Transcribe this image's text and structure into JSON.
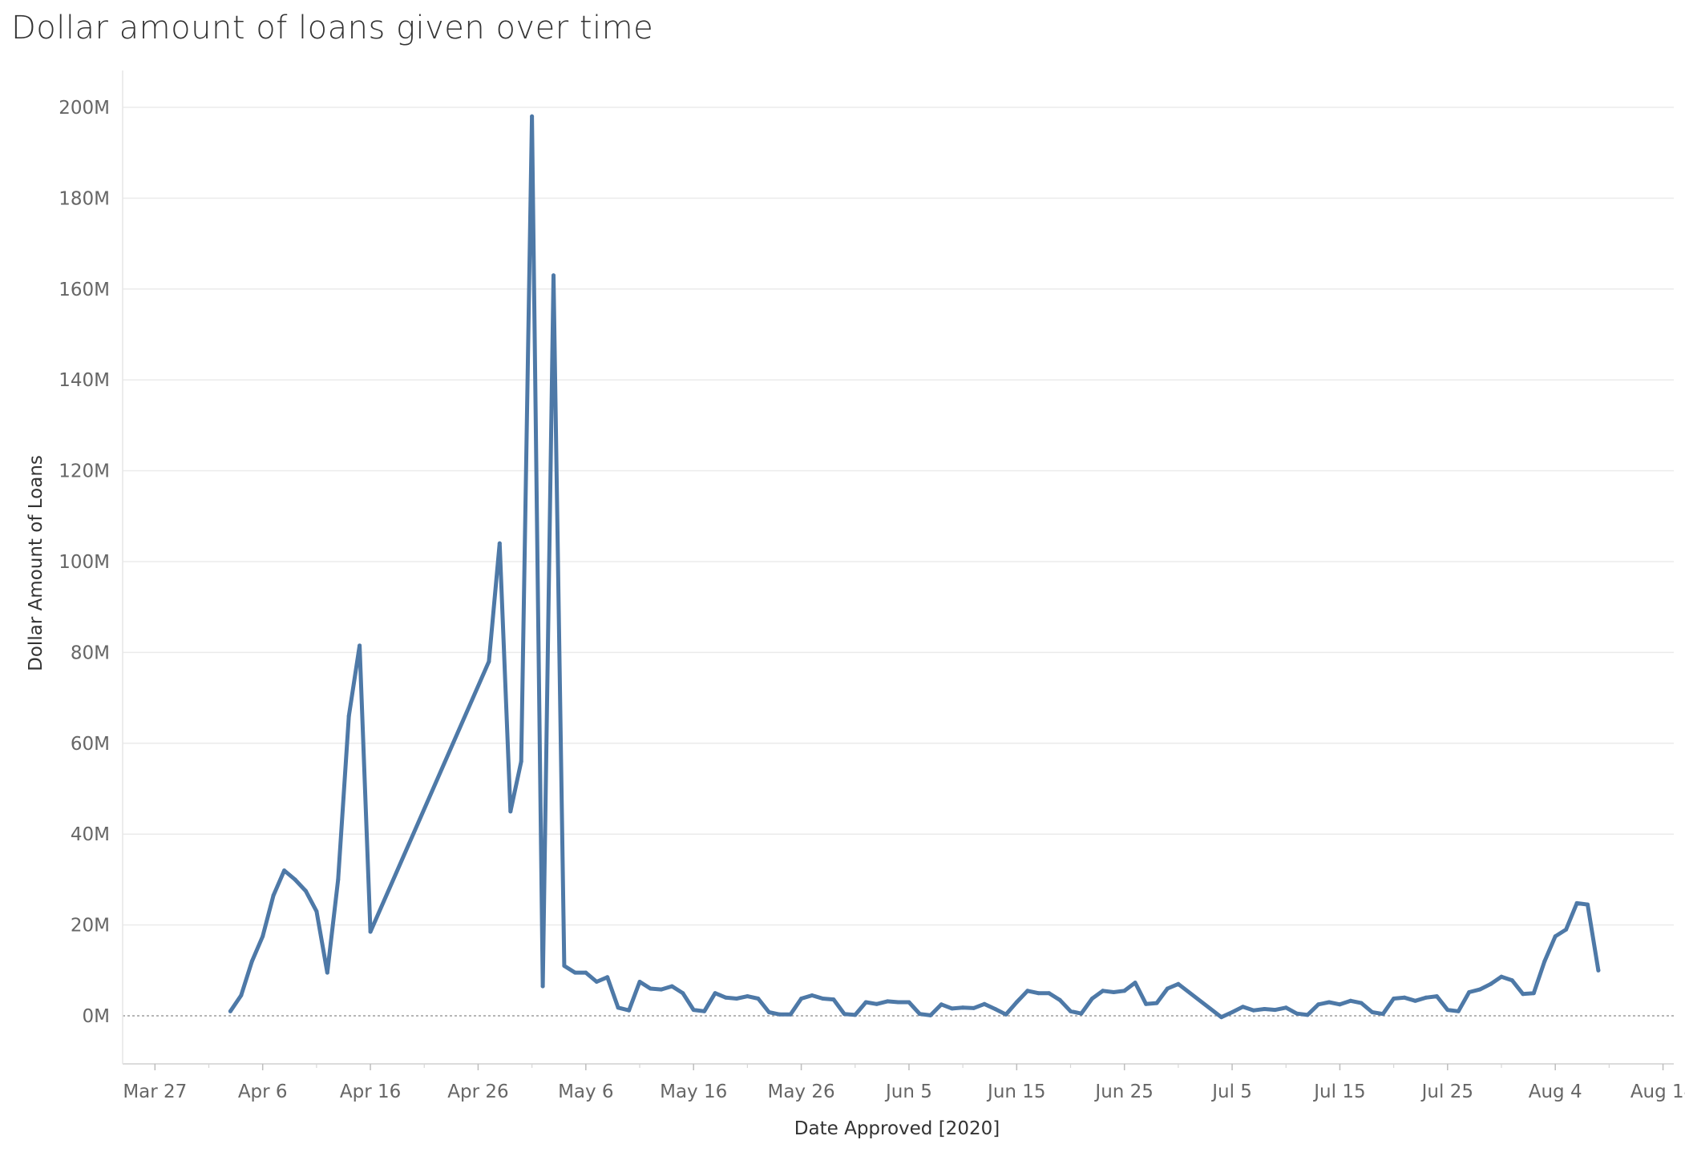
{
  "chart_data": {
    "type": "line",
    "title": "Dollar amount of loans given over time",
    "xlabel": "Date Approved [2020]",
    "ylabel": "Dollar Amount of Loans",
    "x_ticks": [
      "Mar 27",
      "Apr 6",
      "Apr 16",
      "Apr 26",
      "May 6",
      "May 16",
      "May 26",
      "Jun 5",
      "Jun 15",
      "Jun 25",
      "Jul 5",
      "Jul 15",
      "Jul 25",
      "Aug 4",
      "Aug 14"
    ],
    "y_ticks": [
      "0M",
      "20M",
      "40M",
      "60M",
      "80M",
      "100M",
      "120M",
      "140M",
      "160M",
      "180M",
      "200M"
    ],
    "xlim": [
      "2020-03-24",
      "2020-08-15"
    ],
    "ylim": [
      -10,
      200
    ],
    "y_unit": "M",
    "grid": true,
    "line_color": "#4e79a7",
    "series": [
      {
        "values": [
          [
            "2020-04-03",
            1
          ],
          [
            "2020-04-04",
            4.5
          ],
          [
            "2020-04-05",
            12
          ],
          [
            "2020-04-06",
            17.5
          ],
          [
            "2020-04-07",
            26.5
          ],
          [
            "2020-04-08",
            32
          ],
          [
            "2020-04-09",
            30
          ],
          [
            "2020-04-10",
            27.5
          ],
          [
            "2020-04-11",
            23
          ],
          [
            "2020-04-12",
            9.5
          ],
          [
            "2020-04-13",
            30
          ],
          [
            "2020-04-14",
            66
          ],
          [
            "2020-04-15",
            81.5
          ],
          [
            "2020-04-16",
            18.5
          ],
          [
            "2020-04-27",
            78
          ],
          [
            "2020-04-28",
            104
          ],
          [
            "2020-04-29",
            45
          ],
          [
            "2020-04-30",
            56
          ],
          [
            "2020-05-01",
            198
          ],
          [
            "2020-05-02",
            6.5
          ],
          [
            "2020-05-03",
            163
          ],
          [
            "2020-05-04",
            11
          ],
          [
            "2020-05-05",
            9.5
          ],
          [
            "2020-05-06",
            9.5
          ],
          [
            "2020-05-07",
            7.5
          ],
          [
            "2020-05-08",
            8.5
          ],
          [
            "2020-05-09",
            1.8
          ],
          [
            "2020-05-10",
            1.2
          ],
          [
            "2020-05-11",
            7.5
          ],
          [
            "2020-05-12",
            6
          ],
          [
            "2020-05-13",
            5.8
          ],
          [
            "2020-05-14",
            6.5
          ],
          [
            "2020-05-15",
            5
          ],
          [
            "2020-05-16",
            1.3
          ],
          [
            "2020-05-17",
            1
          ],
          [
            "2020-05-18",
            5
          ],
          [
            "2020-05-19",
            4
          ],
          [
            "2020-05-20",
            3.8
          ],
          [
            "2020-05-21",
            4.3
          ],
          [
            "2020-05-22",
            3.8
          ],
          [
            "2020-05-23",
            0.8
          ],
          [
            "2020-05-24",
            0.3
          ],
          [
            "2020-05-25",
            0.3
          ],
          [
            "2020-05-26",
            3.8
          ],
          [
            "2020-05-27",
            4.5
          ],
          [
            "2020-05-28",
            3.8
          ],
          [
            "2020-05-29",
            3.6
          ],
          [
            "2020-05-30",
            0.4
          ],
          [
            "2020-05-31",
            0.2
          ],
          [
            "2020-06-01",
            3
          ],
          [
            "2020-06-02",
            2.6
          ],
          [
            "2020-06-03",
            3.2
          ],
          [
            "2020-06-04",
            3
          ],
          [
            "2020-06-05",
            3
          ],
          [
            "2020-06-06",
            0.4
          ],
          [
            "2020-06-07",
            0.1
          ],
          [
            "2020-06-08",
            2.5
          ],
          [
            "2020-06-09",
            1.6
          ],
          [
            "2020-06-10",
            1.8
          ],
          [
            "2020-06-11",
            1.7
          ],
          [
            "2020-06-12",
            2.6
          ],
          [
            "2020-06-13",
            1.5
          ],
          [
            "2020-06-14",
            0.3
          ],
          [
            "2020-06-15",
            3
          ],
          [
            "2020-06-16",
            5.5
          ],
          [
            "2020-06-17",
            5
          ],
          [
            "2020-06-18",
            5
          ],
          [
            "2020-06-19",
            3.5
          ],
          [
            "2020-06-20",
            1
          ],
          [
            "2020-06-21",
            0.5
          ],
          [
            "2020-06-22",
            3.8
          ],
          [
            "2020-06-23",
            5.5
          ],
          [
            "2020-06-24",
            5.2
          ],
          [
            "2020-06-25",
            5.5
          ],
          [
            "2020-06-26",
            7.3
          ],
          [
            "2020-06-27",
            2.6
          ],
          [
            "2020-06-28",
            2.8
          ],
          [
            "2020-06-29",
            6
          ],
          [
            "2020-06-30",
            7
          ],
          [
            "2020-07-04",
            -0.3
          ],
          [
            "2020-07-05",
            0.8
          ],
          [
            "2020-07-06",
            2
          ],
          [
            "2020-07-07",
            1.2
          ],
          [
            "2020-07-08",
            1.5
          ],
          [
            "2020-07-09",
            1.3
          ],
          [
            "2020-07-10",
            1.8
          ],
          [
            "2020-07-11",
            0.5
          ],
          [
            "2020-07-12",
            0.2
          ],
          [
            "2020-07-13",
            2.5
          ],
          [
            "2020-07-14",
            3
          ],
          [
            "2020-07-15",
            2.5
          ],
          [
            "2020-07-16",
            3.3
          ],
          [
            "2020-07-17",
            2.8
          ],
          [
            "2020-07-18",
            0.8
          ],
          [
            "2020-07-19",
            0.4
          ],
          [
            "2020-07-20",
            3.8
          ],
          [
            "2020-07-21",
            4
          ],
          [
            "2020-07-22",
            3.3
          ],
          [
            "2020-07-23",
            4
          ],
          [
            "2020-07-24",
            4.3
          ],
          [
            "2020-07-25",
            1.3
          ],
          [
            "2020-07-26",
            1
          ],
          [
            "2020-07-27",
            5.2
          ],
          [
            "2020-07-28",
            5.8
          ],
          [
            "2020-07-29",
            7
          ],
          [
            "2020-07-30",
            8.6
          ],
          [
            "2020-07-31",
            7.8
          ],
          [
            "2020-08-01",
            4.8
          ],
          [
            "2020-08-02",
            5
          ],
          [
            "2020-08-03",
            12
          ],
          [
            "2020-08-04",
            17.5
          ],
          [
            "2020-08-05",
            19
          ],
          [
            "2020-08-06",
            24.8
          ],
          [
            "2020-08-07",
            24.5
          ],
          [
            "2020-08-08",
            10
          ]
        ]
      }
    ]
  }
}
